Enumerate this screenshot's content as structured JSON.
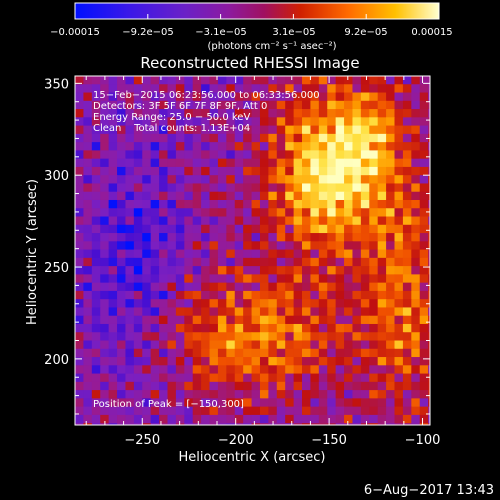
{
  "chart_data": {
    "type": "heatmap",
    "title": "Reconstructed RHESSI Image",
    "xlabel": "Heliocentric X (arcsec)",
    "ylabel": "Heliocentric Y (arcsec)",
    "xlim": [
      -286,
      -96
    ],
    "ylim": [
      164,
      354
    ],
    "x_ticks": [
      -250,
      -200,
      -150,
      -100
    ],
    "x_tick_labels": [
      "−250",
      "−200",
      "−150",
      "−100"
    ],
    "y_ticks": [
      200,
      250,
      300,
      350
    ],
    "y_tick_labels": [
      "200",
      "250",
      "300",
      "350"
    ],
    "colorbar": {
      "range": [
        -0.00015,
        0.00015
      ],
      "tick_labels": [
        "−0.00015",
        "−9.2e−05",
        "−3.1e−05",
        "3.1e−05",
        "9.2e−05",
        "0.00015"
      ],
      "unit_label": "(photons cm⁻² s⁻¹ asec⁻²)"
    },
    "annotations": {
      "time_range": "15−Feb−2015 06:23:56.000 to 06:33:56.000",
      "detectors": "Detectors: 3F 5F 6F 7F 8F 9F, Att 0",
      "energy_range": "Energy Range: 25.0 − 50.0 keV",
      "method_counts": "Clean    Total counts: 1.13E+04",
      "peak": "Position of Peak = [−150,300]"
    },
    "peak_position": [
      -150,
      300
    ],
    "grid": false,
    "colormap": [
      "#0010ff",
      "#4a0fd0",
      "#7b1fc0",
      "#9a1a90",
      "#c01010",
      "#f05000",
      "#ffa000",
      "#ffe040",
      "#ffffc0"
    ]
  },
  "footer": {
    "timestamp": "6−Aug−2017 13:43"
  }
}
